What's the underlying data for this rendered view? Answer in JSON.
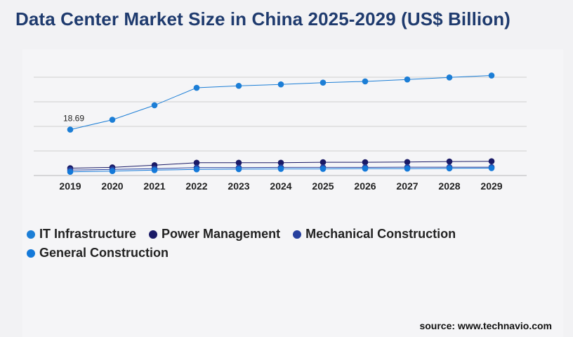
{
  "title": "Data Center Market Size in China 2025-2029 (US$ Billion)",
  "source": "source: www.technavio.com",
  "chart_data": {
    "type": "line",
    "x": [
      "2019",
      "2020",
      "2021",
      "2022",
      "2023",
      "2024",
      "2025",
      "2026",
      "2027",
      "2028",
      "2029"
    ],
    "ylim": [
      0,
      40
    ],
    "grid": true,
    "legend_placement": "bottom-left",
    "annotations": [
      {
        "series": "IT Infrastructure",
        "x": "2019",
        "text": "18.69"
      }
    ],
    "series": [
      {
        "name": "IT Infrastructure",
        "color": "#1c7ed6",
        "values": [
          18.69,
          22.7,
          28.6,
          35.7,
          36.5,
          37.1,
          37.8,
          38.3,
          39.1,
          39.9,
          40.7
        ]
      },
      {
        "name": "Power Management",
        "color": "#1a1a66",
        "values": [
          3.0,
          3.3,
          4.2,
          5.2,
          5.2,
          5.2,
          5.4,
          5.4,
          5.5,
          5.7,
          5.8
        ]
      },
      {
        "name": "Mechanical Construction",
        "color": "#27409e",
        "values": [
          2.2,
          2.5,
          2.8,
          3.2,
          3.2,
          3.3,
          3.3,
          3.3,
          3.4,
          3.4,
          3.4
        ]
      },
      {
        "name": "General Construction",
        "color": "#1479d9",
        "values": [
          1.5,
          1.8,
          2.2,
          2.5,
          2.6,
          2.7,
          2.7,
          2.8,
          2.8,
          2.9,
          3.0
        ]
      }
    ]
  }
}
